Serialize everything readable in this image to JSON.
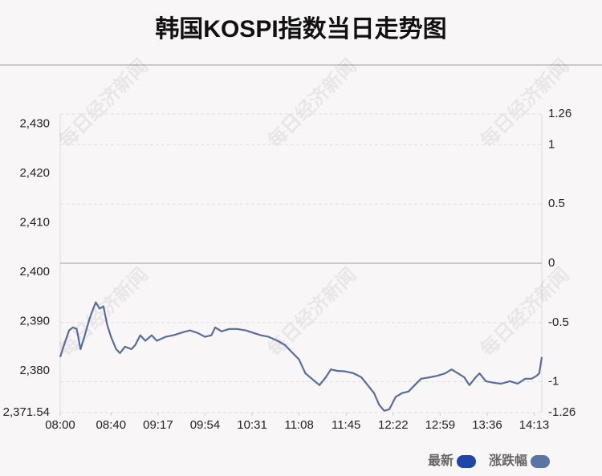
{
  "chart_data": {
    "type": "line",
    "title": "韩国KOSPI指数当日走势图",
    "watermark": "每日经济新闻",
    "x": [
      "08:00",
      "08:03",
      "08:07",
      "08:10",
      "08:13",
      "08:16",
      "08:19",
      "08:23",
      "08:26",
      "08:28",
      "08:31",
      "08:34",
      "08:37",
      "08:40",
      "08:44",
      "08:47",
      "08:51",
      "08:56",
      "08:59",
      "09:03",
      "09:07",
      "09:12",
      "09:16",
      "09:23",
      "09:29",
      "09:35",
      "09:42",
      "09:48",
      "09:54",
      "09:59",
      "10:02",
      "10:07",
      "10:13",
      "10:19",
      "10:26",
      "10:32",
      "10:38",
      "10:44",
      "10:51",
      "10:57",
      "11:03",
      "11:08",
      "11:13",
      "11:18",
      "11:24",
      "11:29",
      "11:33",
      "11:38",
      "11:44",
      "11:51",
      "11:57",
      "12:02",
      "12:07",
      "12:11",
      "12:15",
      "12:19",
      "12:24",
      "12:29",
      "12:34",
      "12:39",
      "12:44",
      "12:51",
      "12:57",
      "13:03",
      "13:08",
      "13:13",
      "13:18",
      "13:22",
      "13:27",
      "13:30",
      "13:35",
      "13:41",
      "13:47",
      "13:54",
      "14:00",
      "14:06",
      "14:11",
      "14:15",
      "14:17",
      "14:19"
    ],
    "series": [
      {
        "color": "#596d9c",
        "values": [
          2382.8,
          2385.2,
          2388.2,
          2388.8,
          2388.5,
          2384.4,
          2386.9,
          2390.5,
          2392.6,
          2393.9,
          2392.6,
          2393.1,
          2389.3,
          2386.9,
          2384.4,
          2383.6,
          2384.9,
          2384.4,
          2385.2,
          2387.2,
          2386.1,
          2387.2,
          2386.1,
          2386.9,
          2387.2,
          2387.7,
          2388.2,
          2387.7,
          2386.9,
          2387.2,
          2388.8,
          2388.0,
          2388.5,
          2388.5,
          2388.2,
          2387.7,
          2387.2,
          2386.9,
          2386.1,
          2385.2,
          2383.6,
          2382.3,
          2379.5,
          2378.4,
          2377.1,
          2378.7,
          2380.3,
          2380.0,
          2379.9,
          2379.5,
          2378.7,
          2377.1,
          2375.5,
          2373.1,
          2371.9,
          2372.2,
          2374.7,
          2375.5,
          2375.8,
          2377.1,
          2378.4,
          2378.7,
          2379.0,
          2379.5,
          2380.3,
          2379.5,
          2378.7,
          2377.1,
          2378.7,
          2379.5,
          2377.9,
          2377.6,
          2377.4,
          2377.9,
          2377.4,
          2378.4,
          2378.4,
          2379.0,
          2379.5,
          2382.8
        ]
      }
    ],
    "legend": [
      {
        "name": "最新",
        "color": "#1f45a8"
      },
      {
        "name": "涨跌幅",
        "color": "#5b74a6"
      }
    ],
    "xlim": [
      "08:00",
      "14:19"
    ],
    "xticks": [
      "08:00",
      "08:40",
      "09:17",
      "09:54",
      "10:31",
      "11:08",
      "11:45",
      "12:22",
      "12:59",
      "13:36",
      "14:13"
    ],
    "ylim": [
      2371.54,
      2432.06
    ],
    "yticks": [
      {
        "value": 2371.54,
        "label": "2,371.54"
      },
      {
        "value": 2380,
        "label": "2,380"
      },
      {
        "value": 2390,
        "label": "2,390"
      },
      {
        "value": 2400,
        "label": "2,400"
      },
      {
        "value": 2410,
        "label": "2,410"
      },
      {
        "value": 2420,
        "label": "2,420"
      },
      {
        "value": 2430,
        "label": "2,430"
      }
    ],
    "y2lim": [
      -1.26,
      1.26
    ],
    "y2ticks": [
      -1.26,
      -1,
      -0.5,
      0,
      0.5,
      1,
      1.26
    ],
    "grid": true
  }
}
